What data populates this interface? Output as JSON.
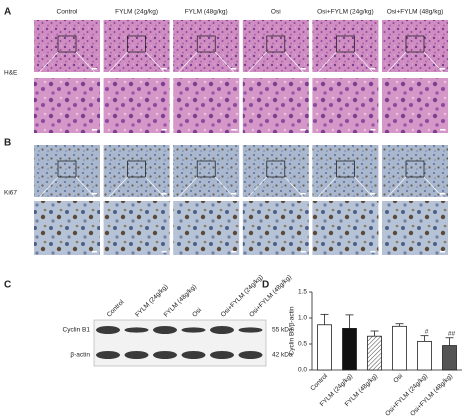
{
  "panels": {
    "A": {
      "label": "A",
      "row_label": "H&E"
    },
    "B": {
      "label": "B",
      "row_label": "Ki67"
    },
    "C": {
      "label": "C",
      "lanes": [
        "Control",
        "FYLM (24g/kg)",
        "FYLM (48g/kg)",
        "Osi",
        "Osi+FYLM (24g/kg)",
        "Osi+FYLM (48g/kg)"
      ],
      "proteins": [
        {
          "name": "Cyclin B1",
          "size": "55 kDa"
        },
        {
          "name": "β-actin",
          "size": "42 kDa"
        }
      ]
    },
    "D": {
      "label": "D"
    }
  },
  "columns": [
    "Control",
    "FYLM (24g/kg)",
    "FYLM (48g/kg)",
    "Osi",
    "Osi+FYLM (24g/kg)",
    "Osi+FYLM (48g/kg)"
  ],
  "chart_data": {
    "type": "bar",
    "ylabel": "Cyclin B1/β-actin",
    "categories": [
      "Control",
      "FYLM (24g/kg)",
      "FYLM (48g/kg)",
      "Osi",
      "Osi+FYLM (24g/kg)",
      "Osi+FYLM (48g/kg)"
    ],
    "values": [
      0.87,
      0.8,
      0.65,
      0.84,
      0.55,
      0.47
    ],
    "errors": [
      0.2,
      0.26,
      0.1,
      0.05,
      0.11,
      0.15
    ],
    "annotations": [
      null,
      null,
      null,
      null,
      "#",
      "##"
    ],
    "colors": [
      "#ffffff",
      "#111111",
      "#ffffff",
      "#ffffff",
      "#ffffff",
      "#555555"
    ],
    "ylim": [
      0,
      1.5
    ],
    "yticks": [
      {
        "value": 0,
        "label": "0.0"
      },
      {
        "value": 0.5,
        "label": "0.5"
      },
      {
        "value": 1,
        "label": "1.0"
      },
      {
        "value": 1.5,
        "label": "1.5"
      }
    ]
  }
}
